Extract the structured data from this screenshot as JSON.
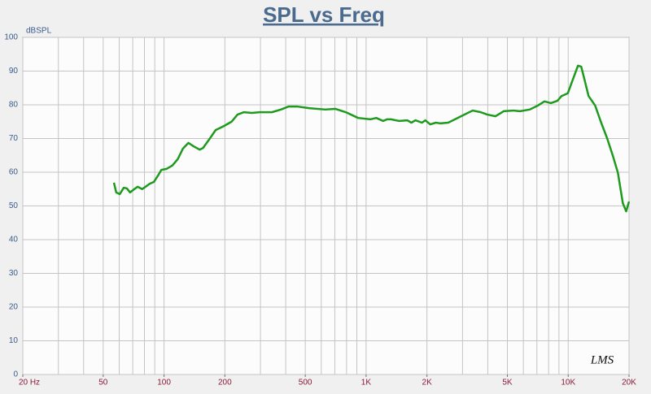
{
  "chart_data": {
    "type": "line",
    "title": "SPL vs Freq",
    "y_label": "dBSPL",
    "annotation": "LMS",
    "log_x": true,
    "grid": true,
    "xlim": [
      20,
      20000
    ],
    "xticks": [
      {
        "value": 20,
        "label": "20 Hz"
      },
      50,
      100,
      200,
      500,
      {
        "value": 1000,
        "label": "1K"
      },
      {
        "value": 2000,
        "label": "2K"
      },
      {
        "value": 5000,
        "label": "5K"
      },
      {
        "value": 10000,
        "label": "10K"
      },
      {
        "value": 20000,
        "label": "20K"
      }
    ],
    "xgrid": [
      20,
      30,
      40,
      50,
      60,
      70,
      80,
      90,
      100,
      200,
      300,
      400,
      500,
      600,
      700,
      800,
      900,
      1000,
      2000,
      3000,
      4000,
      5000,
      6000,
      7000,
      8000,
      9000,
      10000,
      20000
    ],
    "ylim": [
      0,
      100
    ],
    "yticks": [
      0,
      10,
      20,
      30,
      40,
      50,
      60,
      70,
      80,
      90,
      100
    ],
    "series": [
      {
        "name": "SPL",
        "color": "#1e9a1e",
        "x": [
          56.5,
          58,
          60.4,
          63.2,
          65.5,
          67.9,
          71.3,
          74,
          78,
          81,
          85,
          89,
          94,
          97,
          103,
          110,
          117,
          124,
          132,
          140,
          150,
          156,
          169,
          180,
          198,
          216,
          231,
          248,
          272,
          297,
          342,
          379,
          414,
          455,
          522,
          628,
          703,
          794,
          913,
          1052,
          1123,
          1213,
          1269,
          1329,
          1458,
          1598,
          1675,
          1755,
          1890,
          1962,
          2075,
          2215,
          2322,
          2548,
          2797,
          3068,
          3367,
          3694,
          3981,
          4370,
          4795,
          5360,
          5776,
          6455,
          7085,
          7627,
          8213,
          8846,
          9270,
          9950,
          10470,
          11180,
          11600,
          12040,
          12610,
          13590,
          14500,
          15600,
          16650,
          17620,
          18640,
          19360,
          20000
        ],
        "values": [
          56.9,
          54,
          53.5,
          55.4,
          55.2,
          54,
          55,
          55.7,
          55,
          55.7,
          56.6,
          57.1,
          59.3,
          60.7,
          61,
          62,
          63.9,
          67,
          68.7,
          67.7,
          66.7,
          67.2,
          70.1,
          72.5,
          73.7,
          75,
          77.1,
          77.8,
          77.6,
          77.8,
          77.8,
          78.6,
          79.5,
          79.5,
          79,
          78.6,
          78.8,
          77.8,
          76.1,
          75.7,
          76.1,
          75.2,
          75.7,
          75.7,
          75.2,
          75.4,
          74.7,
          75.4,
          74.7,
          75.4,
          74.2,
          74.7,
          74.5,
          74.7,
          75.9,
          77.1,
          78.3,
          77.8,
          77.1,
          76.6,
          78.1,
          78.3,
          78.1,
          78.6,
          79.8,
          81,
          80.5,
          81.2,
          82.6,
          83.4,
          87,
          91.6,
          91.3,
          87.5,
          82.6,
          79.8,
          75,
          70,
          64.8,
          59.8,
          50.8,
          48.4,
          51.3
        ]
      }
    ]
  }
}
